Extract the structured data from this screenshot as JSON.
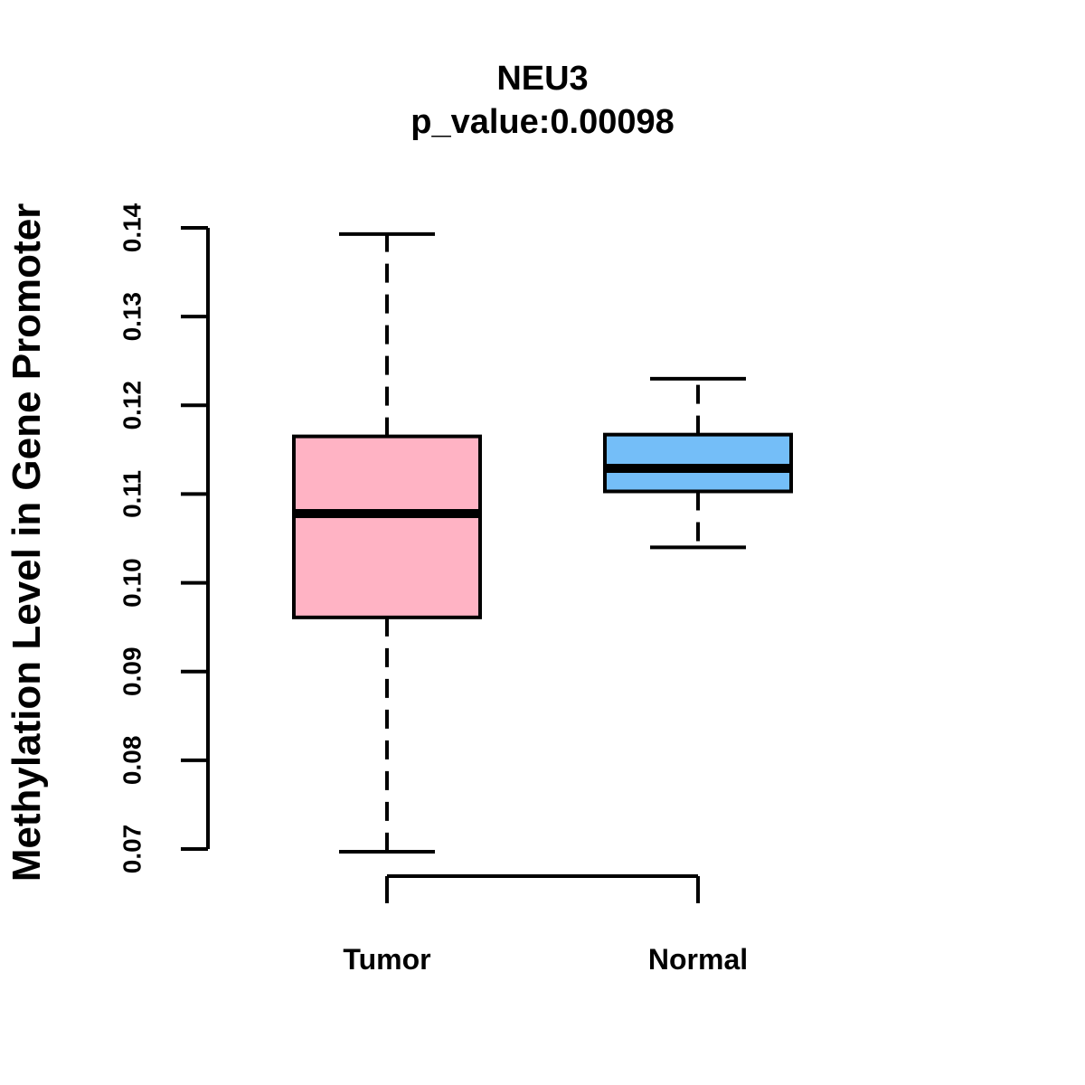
{
  "chart_data": {
    "type": "boxplot",
    "title": "NEU3",
    "subtitle": "p_value:0.00098",
    "ylabel": "Methylation Level in Gene Promoter",
    "xlabel": "",
    "grid": false,
    "legend": "none",
    "axis": {
      "min": 0.07,
      "max": 0.14,
      "ticks": [
        0.07,
        0.08,
        0.09,
        0.1,
        0.11,
        0.12,
        0.13,
        0.14
      ],
      "tick_labels": [
        "0.07",
        "0.08",
        "0.09",
        "0.10",
        "0.11",
        "0.12",
        "0.13",
        "0.14"
      ]
    },
    "categories": [
      "Tumor",
      "Normal"
    ],
    "series": [
      {
        "name": "Tumor",
        "color": "#FFB3C4",
        "whisker_low": 0.0697,
        "q1": 0.0961,
        "median": 0.1078,
        "q3": 0.1165,
        "whisker_high": 0.1393
      },
      {
        "name": "Normal",
        "color": "#74BEF8",
        "whisker_low": 0.104,
        "q1": 0.1103,
        "median": 0.1129,
        "q3": 0.1167,
        "whisker_high": 0.123
      }
    ],
    "colors": {
      "box_border": "#000000",
      "median_line": "#000000",
      "axis": "#000000",
      "background": "#FFFFFF"
    }
  }
}
